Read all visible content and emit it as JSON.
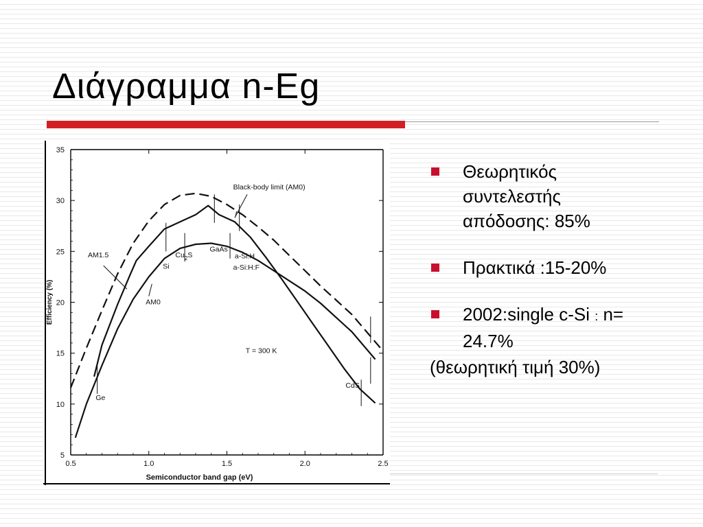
{
  "slide": {
    "title": "Διάγραμμα n-Eg",
    "accent_color": "#d21e24",
    "bullet_color": "#c8102e",
    "bullet_icon": "red-square-bullet"
  },
  "bullets": [
    {
      "lines": [
        "Θεωρητικός",
        "συντελεστής",
        "απόδοσης: 85%"
      ]
    },
    {
      "lines": [
        "Πρακτικά :15-20%"
      ]
    },
    {
      "parts": {
        "before": "2002:single c-Si ",
        "colon": ":",
        "after": " n="
      },
      "lines": [
        "24.7%"
      ]
    }
  ],
  "note": "(θεωρητική τιμή 30%)",
  "chart_data": {
    "type": "line",
    "xlabel": "Semiconductor band gap (eV)",
    "ylabel": "Efficiency (%)",
    "xlim": [
      0.5,
      2.5
    ],
    "ylim": [
      5,
      35
    ],
    "x_ticks": [
      "0.5",
      "1.0",
      "1.5",
      "2.0",
      "2.5"
    ],
    "x_tick_values": [
      0.5,
      1.0,
      1.5,
      2.0,
      2.5
    ],
    "y_ticks": [
      "5",
      "10",
      "15",
      "20",
      "25",
      "30",
      "35"
    ],
    "y_tick_values": [
      5,
      10,
      15,
      20,
      25,
      30,
      35
    ],
    "series": [
      {
        "name": "Black-body limit (AM0)",
        "style": "dashed",
        "x": [
          0.5,
          0.6,
          0.7,
          0.8,
          0.9,
          1.0,
          1.1,
          1.2,
          1.3,
          1.4,
          1.5,
          1.6,
          1.7,
          1.8,
          1.9,
          2.0,
          2.1,
          2.2,
          2.3,
          2.4,
          2.5
        ],
        "y": [
          11.6,
          15.5,
          19.2,
          22.8,
          25.8,
          28.0,
          29.6,
          30.5,
          30.7,
          30.4,
          29.6,
          28.6,
          27.4,
          26.1,
          24.6,
          23.1,
          21.6,
          20.2,
          18.8,
          17.0,
          15.2
        ]
      },
      {
        "name": "AM1.5",
        "style": "solid",
        "x": [
          0.65,
          0.7,
          0.8,
          0.88,
          0.92,
          1.0,
          1.1,
          1.2,
          1.3,
          1.38,
          1.45,
          1.55,
          1.65,
          1.75,
          1.85,
          1.95,
          2.05,
          2.15,
          2.25,
          2.35,
          2.45
        ],
        "y": [
          12.7,
          15.8,
          19.8,
          22.7,
          24.1,
          25.5,
          27.2,
          27.9,
          28.6,
          29.5,
          28.6,
          27.9,
          26.4,
          24.4,
          22.3,
          20.1,
          17.9,
          15.7,
          13.5,
          11.5,
          10.1
        ]
      },
      {
        "name": "AM0",
        "style": "solid",
        "x": [
          0.53,
          0.6,
          0.7,
          0.8,
          0.9,
          1.0,
          1.1,
          1.2,
          1.3,
          1.4,
          1.5,
          1.6,
          1.7,
          1.8,
          1.9,
          2.0,
          2.1,
          2.2,
          2.3,
          2.45
        ],
        "y": [
          6.7,
          10.0,
          13.8,
          17.4,
          20.3,
          22.5,
          24.3,
          25.3,
          25.7,
          25.8,
          25.5,
          24.9,
          24.1,
          23.1,
          22.1,
          21.1,
          19.9,
          18.5,
          17.1,
          14.4
        ]
      }
    ],
    "annotations": [
      {
        "text": "Black-body limit (AM0)",
        "x": 1.54,
        "y": 31.1
      },
      {
        "text": "AM1.5",
        "x": 0.61,
        "y": 24.4
      },
      {
        "text": "AM0",
        "x": 0.98,
        "y": 19.8
      },
      {
        "text": "Ge",
        "x": 0.66,
        "y": 10.4
      },
      {
        "text": "Si",
        "x": 1.09,
        "y": 23.3
      },
      {
        "text": "GaAs",
        "x": 1.39,
        "y": 25.0
      },
      {
        "text": "a-Si:H",
        "x": 1.55,
        "y": 24.3
      },
      {
        "text": "a-Si:H:F",
        "x": 1.54,
        "y": 23.2
      },
      {
        "text": "CdS",
        "x": 2.26,
        "y": 11.6
      },
      {
        "text": "T = 300 K",
        "x": 1.62,
        "y": 15.0
      }
    ],
    "cu2s_label": {
      "base": "Cu",
      "sub": "2",
      "after": "S",
      "x": 1.17,
      "y": 24.4
    }
  }
}
